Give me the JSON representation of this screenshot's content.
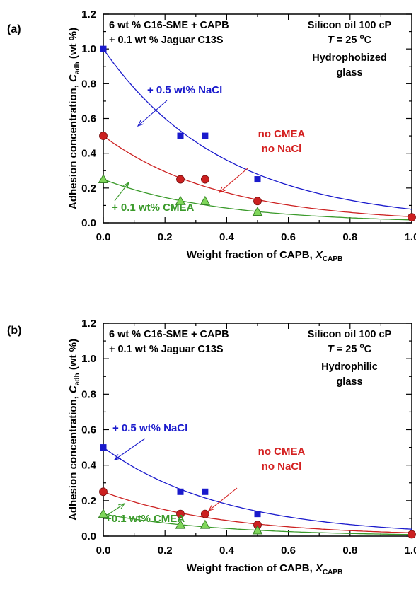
{
  "figure": {
    "panels": [
      {
        "panel_label": "(a)",
        "formulation": [
          "6 wt % C16-SME + CAPB",
          "+ 0.1 wt % Jaguar C13S"
        ],
        "conditions": {
          "oil": "Silicon oil 100 cP",
          "temperature": {
            "symbol": "T",
            "value": " = 25 ",
            "unit_sup": "o",
            "unit": "C"
          },
          "surface": [
            "Hydrophobized",
            "glass"
          ]
        },
        "annotations": [
          {
            "lines": [
              "+ 0.5 wt% NaCl"
            ],
            "color": "#1a1acc"
          },
          {
            "lines": [
              "no CMEA",
              "no NaCl"
            ],
            "color": "#d42020"
          },
          {
            "lines": [
              "+ 0.1 wt% CMEA"
            ],
            "color": "#3a9a2a"
          }
        ]
      },
      {
        "panel_label": "(b)",
        "formulation": [
          "6 wt % C16-SME + CAPB",
          "+ 0.1 wt % Jaguar C13S"
        ],
        "conditions": {
          "oil": "Silicon oil 100 cP",
          "temperature": {
            "symbol": "T",
            "value": " = 25 ",
            "unit_sup": "o",
            "unit": "C"
          },
          "surface": [
            "Hydrophilic",
            "glass"
          ]
        },
        "annotations": [
          {
            "lines": [
              "+ 0.5 wt% NaCl"
            ],
            "color": "#1a1acc"
          },
          {
            "lines": [
              "no CMEA",
              "no NaCl"
            ],
            "color": "#d42020"
          },
          {
            "lines": [
              "+0.1 wt% CMEA"
            ],
            "color": "#3a9a2a"
          }
        ]
      }
    ]
  },
  "chart_data": [
    {
      "type": "scatter",
      "title": "",
      "xlabel": {
        "main": "Weight fraction of CAPB, ",
        "var": "X",
        "sub": "CAPB"
      },
      "ylabel": {
        "main": "Adhesion concentration, ",
        "var": "C",
        "sub": "adh",
        "unit": " (wt %)"
      },
      "xlim": [
        0,
        1.0
      ],
      "ylim": [
        0,
        1.2
      ],
      "xticks": [
        "0.0",
        "0.2",
        "0.4",
        "0.6",
        "0.8",
        "1.0"
      ],
      "yticks": [
        "0.0",
        "0.2",
        "0.4",
        "0.6",
        "0.8",
        "1.0",
        "1.2"
      ],
      "grid": false,
      "series": [
        {
          "name": "+ 0.5 wt% NaCl",
          "marker": "square",
          "color": "#1a1acc",
          "x": [
            0.0,
            0.25,
            0.33,
            0.5
          ],
          "y": [
            1.0,
            0.5,
            0.5,
            0.25
          ],
          "fit": {
            "a": 1.0,
            "k": 2.55
          }
        },
        {
          "name": "no CMEA no NaCl",
          "marker": "circle",
          "color": "#cc2020",
          "x": [
            0.0,
            0.25,
            0.33,
            0.5,
            1.0
          ],
          "y": [
            0.5,
            0.25,
            0.25,
            0.125,
            0.032
          ],
          "fit": {
            "a": 0.5,
            "k": 2.65
          }
        },
        {
          "name": "+ 0.1 wt% CMEA",
          "marker": "triangle",
          "color": "#7fd65a",
          "line_color": "#3a9a2a",
          "x": [
            0.0,
            0.25,
            0.33,
            0.5
          ],
          "y": [
            0.25,
            0.125,
            0.125,
            0.063
          ],
          "fit": {
            "a": 0.25,
            "k": 2.7
          }
        }
      ]
    },
    {
      "type": "scatter",
      "title": "",
      "xlabel": {
        "main": "Weight fraction of CAPB, ",
        "var": "X",
        "sub": "CAPB"
      },
      "ylabel": {
        "main": "Adhesion concentration, ",
        "var": "C",
        "sub": "adh",
        "unit": " (wt %)"
      },
      "xlim": [
        0,
        1.0
      ],
      "ylim": [
        0,
        1.2
      ],
      "xticks": [
        "0.0",
        "0.2",
        "0.4",
        "0.6",
        "0.8",
        "1.0"
      ],
      "yticks": [
        "0.0",
        "0.2",
        "0.4",
        "0.6",
        "0.8",
        "1.0",
        "1.2"
      ],
      "grid": false,
      "series": [
        {
          "name": "+ 0.5 wt% NaCl",
          "marker": "square",
          "color": "#1a1acc",
          "x": [
            0.0,
            0.25,
            0.33,
            0.5
          ],
          "y": [
            0.5,
            0.25,
            0.25,
            0.125
          ],
          "fit": {
            "a": 0.5,
            "k": 2.55
          }
        },
        {
          "name": "no CMEA no NaCl",
          "marker": "circle",
          "color": "#cc2020",
          "x": [
            0.0,
            0.25,
            0.33,
            0.5,
            1.0
          ],
          "y": [
            0.25,
            0.125,
            0.125,
            0.063,
            0.01
          ],
          "fit": {
            "a": 0.25,
            "k": 2.6
          }
        },
        {
          "name": "+0.1 wt% CMEA",
          "marker": "triangle",
          "color": "#7fd65a",
          "line_color": "#3a9a2a",
          "x": [
            0.0,
            0.25,
            0.33,
            0.5
          ],
          "y": [
            0.125,
            0.063,
            0.063,
            0.032
          ],
          "fit": {
            "a": 0.125,
            "k": 2.65
          }
        }
      ]
    }
  ]
}
